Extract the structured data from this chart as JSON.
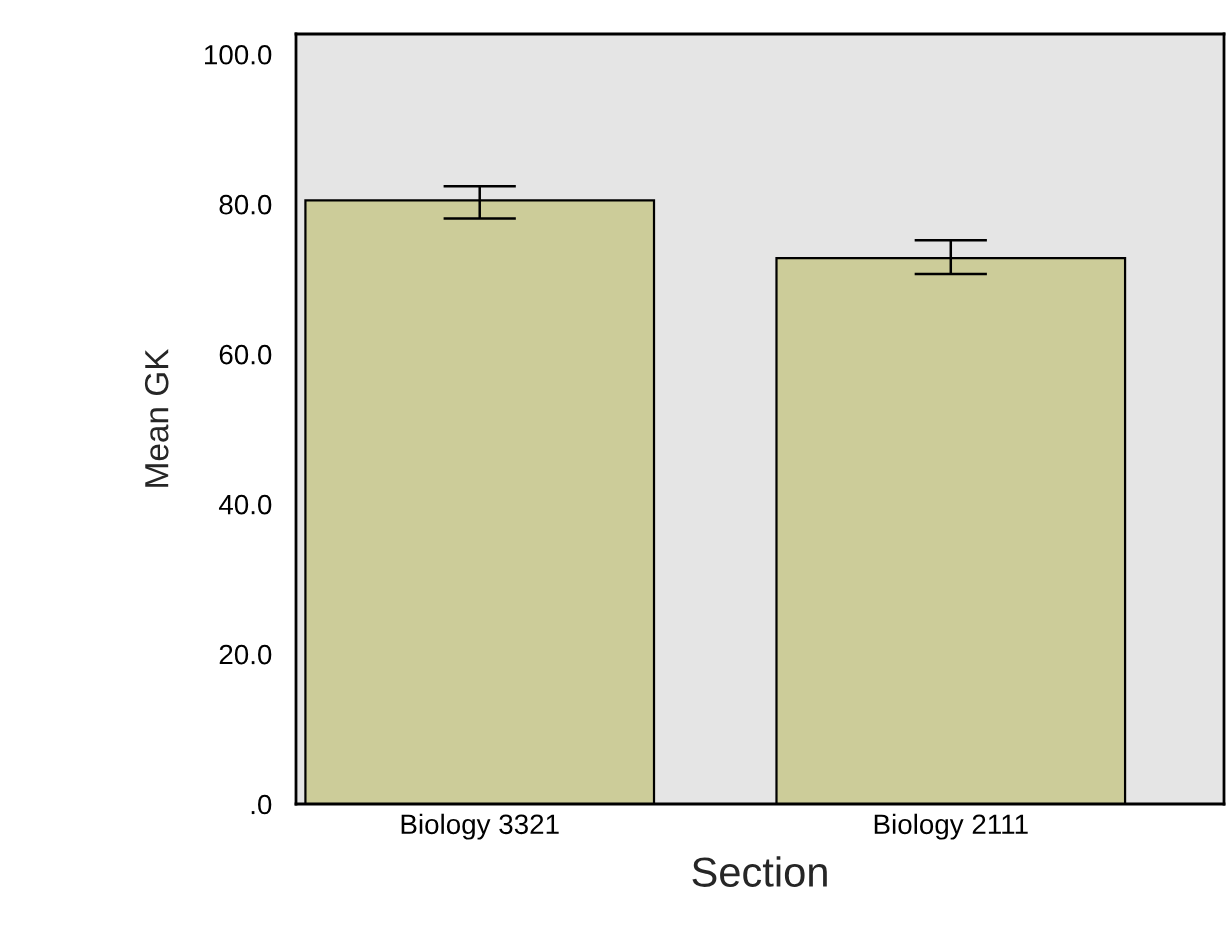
{
  "chart_data": {
    "type": "bar",
    "xlabel": "Section",
    "ylabel": "Mean GK",
    "categories": [
      "Biology 3321",
      "Biology 2111"
    ],
    "values": [
      80.5,
      72.8
    ],
    "color": "#cccc99",
    "errors": [
      [
        78.1,
        82.4
      ],
      [
        70.7,
        75.2
      ]
    ],
    "ylim": [
      0,
      102.7
    ],
    "yticks": [
      {
        "value": 0,
        "label": ".0"
      },
      {
        "value": 20,
        "label": "20.0"
      },
      {
        "value": 40,
        "label": "40.0"
      },
      {
        "value": 60,
        "label": "60.0"
      },
      {
        "value": 80,
        "label": "80.0"
      },
      {
        "value": 100,
        "label": "100.0"
      }
    ],
    "grid": false,
    "legend": false
  }
}
